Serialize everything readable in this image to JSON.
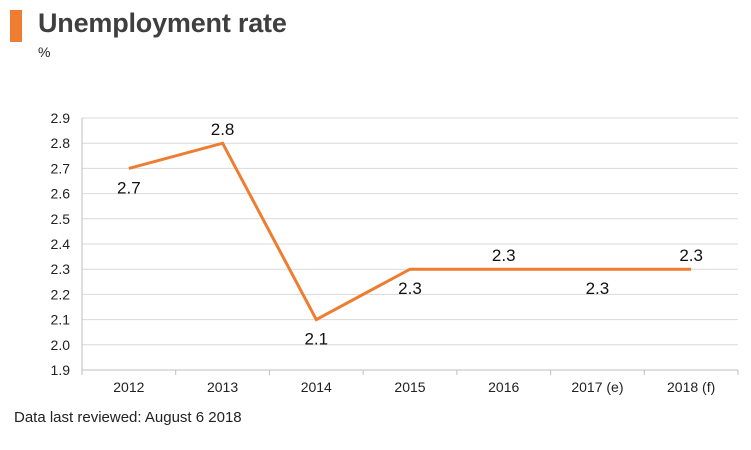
{
  "header": {
    "title": "Unemployment rate",
    "unit": "%"
  },
  "footer": {
    "note": "Data last reviewed: August 6 2018"
  },
  "colors": {
    "accent": "#ee7d31",
    "line": "#ee7d31",
    "grid": "#d9d9d9",
    "text": "#222222"
  },
  "chart_data": {
    "type": "line",
    "title": "Unemployment rate",
    "xlabel": "",
    "ylabel": "%",
    "categories": [
      "2012",
      "2013",
      "2014",
      "2015",
      "2016",
      "2017 (e)",
      "2018 (f)"
    ],
    "series": [
      {
        "name": "Unemployment rate",
        "values": [
          2.7,
          2.8,
          2.1,
          2.3,
          2.3,
          2.3,
          2.3
        ],
        "labels": [
          "2.7",
          "2.8",
          "2.1",
          "2.3",
          "2.3",
          "2.3",
          "2.3"
        ],
        "label_positions": [
          "below",
          "above",
          "below",
          "below",
          "above",
          "below",
          "above"
        ]
      }
    ],
    "ylim": [
      1.9,
      2.9
    ],
    "yticks": [
      1.9,
      2.0,
      2.1,
      2.2,
      2.3,
      2.4,
      2.5,
      2.6,
      2.7,
      2.8,
      2.9
    ],
    "ytick_labels": [
      "1.9",
      "2.0",
      "2.1",
      "2.2",
      "2.3",
      "2.4",
      "2.5",
      "2.6",
      "2.7",
      "2.8",
      "2.9"
    ],
    "grid": true,
    "legend": "none"
  }
}
